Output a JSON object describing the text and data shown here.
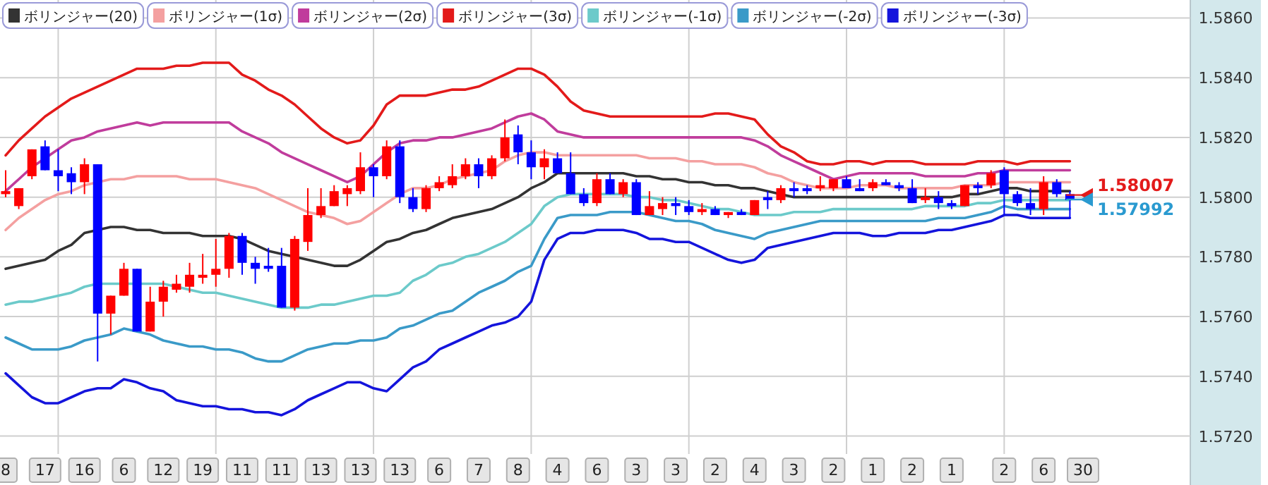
{
  "chart_data": {
    "type": "candlestick",
    "categories": [
      "8",
      null,
      null,
      "17",
      null,
      null,
      "16",
      null,
      null,
      "6",
      null,
      null,
      "12",
      null,
      null,
      "19",
      null,
      null,
      "11",
      null,
      null,
      "11",
      null,
      null,
      "13",
      null,
      null,
      "13",
      null,
      null,
      "13",
      null,
      null,
      "6",
      null,
      null,
      "7",
      null,
      null,
      "8",
      null,
      null,
      "4",
      null,
      null,
      "6",
      null,
      null,
      "3",
      null,
      null,
      "3",
      null,
      null,
      "2",
      null,
      null,
      "4",
      null,
      null,
      "3",
      null,
      null,
      "2",
      null,
      null,
      "1",
      null,
      null,
      "2",
      null,
      null,
      "1",
      null,
      null,
      null,
      "2",
      null,
      null,
      "6",
      null,
      null,
      "30"
    ],
    "ohlc": [
      [
        1.5801,
        1.5809,
        1.58,
        1.5802
      ],
      [
        1.5797,
        1.5803,
        1.5796,
        1.5803
      ],
      [
        1.5807,
        1.5816,
        1.5806,
        1.5816
      ],
      [
        1.5817,
        1.5819,
        1.5809,
        1.5809
      ],
      [
        1.5809,
        1.5816,
        1.5802,
        1.5807
      ],
      [
        1.5808,
        1.581,
        1.5801,
        1.5805
      ],
      [
        1.5805,
        1.5813,
        1.5801,
        1.5811
      ],
      [
        1.5811,
        1.5811,
        1.5745,
        1.5761
      ],
      [
        1.5761,
        1.5767,
        1.5754,
        1.5767
      ],
      [
        1.5767,
        1.5778,
        1.5767,
        1.5776
      ],
      [
        1.5776,
        1.5776,
        1.5755,
        1.5755
      ],
      [
        1.5755,
        1.577,
        1.5755,
        1.5765
      ],
      [
        1.5765,
        1.5772,
        1.576,
        1.577
      ],
      [
        1.5769,
        1.5774,
        1.5768,
        1.5771
      ],
      [
        1.577,
        1.5778,
        1.5768,
        1.5774
      ],
      [
        1.5773,
        1.5781,
        1.5771,
        1.5774
      ],
      [
        1.5774,
        1.5786,
        1.577,
        1.5776
      ],
      [
        1.5776,
        1.5788,
        1.5773,
        1.5787
      ],
      [
        1.5787,
        1.5788,
        1.5774,
        1.5778
      ],
      [
        1.5778,
        1.578,
        1.5771,
        1.5776
      ],
      [
        1.5777,
        1.5783,
        1.5775,
        1.5776
      ],
      [
        1.5777,
        1.5783,
        1.5763,
        1.5763
      ],
      [
        1.5763,
        1.5787,
        1.5762,
        1.5786
      ],
      [
        1.5785,
        1.5803,
        1.5782,
        1.5794
      ],
      [
        1.5794,
        1.5803,
        1.5793,
        1.5797
      ],
      [
        1.5797,
        1.5804,
        1.5797,
        1.5802
      ],
      [
        1.5801,
        1.5804,
        1.5797,
        1.5803
      ],
      [
        1.5802,
        1.5815,
        1.5801,
        1.581
      ],
      [
        1.581,
        1.5811,
        1.58,
        1.5807
      ],
      [
        1.5807,
        1.5819,
        1.5806,
        1.5817
      ],
      [
        1.5817,
        1.5819,
        1.5798,
        1.58
      ],
      [
        1.58,
        1.5803,
        1.5795,
        1.5796
      ],
      [
        1.5796,
        1.5804,
        1.5795,
        1.5803
      ],
      [
        1.5803,
        1.5807,
        1.5802,
        1.5805
      ],
      [
        1.5804,
        1.5811,
        1.5803,
        1.5807
      ],
      [
        1.5807,
        1.5813,
        1.5806,
        1.5811
      ],
      [
        1.5811,
        1.5813,
        1.5803,
        1.5807
      ],
      [
        1.5807,
        1.5814,
        1.5806,
        1.5813
      ],
      [
        1.5813,
        1.5826,
        1.5812,
        1.582
      ],
      [
        1.5821,
        1.5824,
        1.5811,
        1.5815
      ],
      [
        1.5815,
        1.5819,
        1.5806,
        1.581
      ],
      [
        1.581,
        1.5816,
        1.5806,
        1.5813
      ],
      [
        1.5813,
        1.5815,
        1.5808,
        1.5808
      ],
      [
        1.5808,
        1.5815,
        1.5801,
        1.5801
      ],
      [
        1.5801,
        1.5803,
        1.5797,
        1.5798
      ],
      [
        1.5798,
        1.5808,
        1.5797,
        1.5806
      ],
      [
        1.5806,
        1.5808,
        1.5801,
        1.5801
      ],
      [
        1.5801,
        1.5806,
        1.58,
        1.5805
      ],
      [
        1.5805,
        1.5806,
        1.5794,
        1.5794
      ],
      [
        1.5794,
        1.5802,
        1.5794,
        1.5797
      ],
      [
        1.5796,
        1.58,
        1.5794,
        1.5798
      ],
      [
        1.5798,
        1.58,
        1.5794,
        1.5797
      ],
      [
        1.5797,
        1.5799,
        1.5794,
        1.5795
      ],
      [
        1.5795,
        1.5798,
        1.5794,
        1.5796
      ],
      [
        1.5796,
        1.5797,
        1.5794,
        1.5794
      ],
      [
        1.5794,
        1.5795,
        1.5793,
        1.5795
      ],
      [
        1.5795,
        1.5796,
        1.5794,
        1.5794
      ],
      [
        1.5794,
        1.5799,
        1.5794,
        1.5799
      ],
      [
        1.58,
        1.5802,
        1.5796,
        1.5799
      ],
      [
        1.5799,
        1.5804,
        1.5798,
        1.5803
      ],
      [
        1.5803,
        1.5805,
        1.58,
        1.5802
      ],
      [
        1.5803,
        1.5804,
        1.5801,
        1.5802
      ],
      [
        1.5803,
        1.5807,
        1.5802,
        1.5804
      ],
      [
        1.5803,
        1.5806,
        1.5802,
        1.5806
      ],
      [
        1.5806,
        1.5807,
        1.5803,
        1.5803
      ],
      [
        1.5803,
        1.5806,
        1.5802,
        1.5802
      ],
      [
        1.5803,
        1.5806,
        1.5802,
        1.5805
      ],
      [
        1.5805,
        1.5806,
        1.5804,
        1.5804
      ],
      [
        1.5804,
        1.5805,
        1.5802,
        1.5803
      ],
      [
        1.5803,
        1.5806,
        1.5798,
        1.5798
      ],
      [
        1.5799,
        1.5803,
        1.5798,
        1.58
      ],
      [
        1.58,
        1.5802,
        1.5796,
        1.5798
      ],
      [
        1.5798,
        1.5799,
        1.5796,
        1.5797
      ],
      [
        1.5797,
        1.5804,
        1.5797,
        1.5804
      ],
      [
        1.5804,
        1.5805,
        1.5801,
        1.5803
      ],
      [
        1.5804,
        1.5809,
        1.5803,
        1.5808
      ],
      [
        1.5809,
        1.581,
        1.5794,
        1.5801
      ],
      [
        1.5801,
        1.5802,
        1.5797,
        1.5798
      ],
      [
        1.5798,
        1.5803,
        1.5794,
        1.5796
      ],
      [
        1.5796,
        1.5807,
        1.5794,
        1.5805
      ],
      [
        1.5805,
        1.5806,
        1.58,
        1.5801
      ],
      [
        1.5801,
        1.5802,
        1.5793,
        1.5799
      ],
      null
    ],
    "colors": [
      "#ff0000",
      "#ff0000",
      "#ff0000",
      "#0000ff",
      "#0000ff",
      "#0000ff",
      "#ff0000",
      "#0000ff",
      "#ff0000",
      "#ff0000",
      "#0000ff",
      "#ff0000",
      "#ff0000",
      "#ff0000",
      "#ff0000",
      "#ff0000",
      "#ff0000",
      "#ff0000",
      "#0000ff",
      "#0000ff",
      "#0000ff",
      "#0000ff",
      "#ff0000",
      "#ff0000",
      "#ff0000",
      "#ff0000",
      "#ff0000",
      "#ff0000",
      "#0000ff",
      "#ff0000",
      "#0000ff",
      "#0000ff",
      "#ff0000",
      "#ff0000",
      "#ff0000",
      "#ff0000",
      "#0000ff",
      "#ff0000",
      "#ff0000",
      "#0000ff",
      "#0000ff",
      "#ff0000",
      "#0000ff",
      "#0000ff",
      "#0000ff",
      "#ff0000",
      "#0000ff",
      "#ff0000",
      "#0000ff",
      "#ff0000",
      "#ff0000",
      "#0000ff",
      "#0000ff",
      "#ff0000",
      "#0000ff",
      "#ff0000",
      "#0000ff",
      "#ff0000",
      "#0000ff",
      "#ff0000",
      "#0000ff",
      "#0000ff",
      "#ff0000",
      "#ff0000",
      "#0000ff",
      "#0000ff",
      "#ff0000",
      "#0000ff",
      "#0000ff",
      "#0000ff",
      "#ff0000",
      "#0000ff",
      "#0000ff",
      "#ff0000",
      "#0000ff",
      "#ff0000",
      "#0000ff",
      "#0000ff",
      "#0000ff",
      "#ff0000",
      "#0000ff",
      "#0000ff",
      null
    ],
    "series": [
      {
        "name": "ボリンジャー(20)",
        "type": "line",
        "color": "#333333",
        "values": [
          1.5776,
          1.5777,
          1.5778,
          1.5779,
          1.5782,
          1.5784,
          1.5788,
          1.5789,
          1.579,
          1.579,
          1.5789,
          1.5789,
          1.5788,
          1.5788,
          1.5788,
          1.5787,
          1.5787,
          1.5787,
          1.5786,
          1.5784,
          1.5782,
          1.5781,
          1.578,
          1.5779,
          1.5778,
          1.5777,
          1.5777,
          1.5779,
          1.5782,
          1.5785,
          1.5786,
          1.5788,
          1.5789,
          1.5791,
          1.5793,
          1.5794,
          1.5795,
          1.5796,
          1.5798,
          1.58,
          1.5803,
          1.5805,
          1.5808,
          1.5808,
          1.5808,
          1.5808,
          1.5808,
          1.5808,
          1.5807,
          1.5807,
          1.5806,
          1.5806,
          1.5805,
          1.5805,
          1.5804,
          1.5804,
          1.5803,
          1.5803,
          1.5802,
          1.5801,
          1.58,
          1.58,
          1.58,
          1.58,
          1.58,
          1.58,
          1.58,
          1.58,
          1.58,
          1.58,
          1.58,
          1.58,
          1.58,
          1.5801,
          1.5801,
          1.5802,
          1.5803,
          1.5803,
          1.5802,
          1.5802,
          1.5802,
          1.5802,
          null
        ]
      },
      {
        "name": "ボリンジャー(1σ)",
        "type": "line",
        "color": "#f4a0a0",
        "values": [
          1.5789,
          1.5793,
          1.5796,
          1.5799,
          1.5801,
          1.5802,
          1.5804,
          1.5805,
          1.5806,
          1.5806,
          1.5807,
          1.5807,
          1.5807,
          1.5807,
          1.5806,
          1.5806,
          1.5806,
          1.5805,
          1.5804,
          1.5803,
          1.5801,
          1.5799,
          1.5797,
          1.5795,
          1.5794,
          1.5793,
          1.5791,
          1.5792,
          1.5795,
          1.5798,
          1.5801,
          1.5803,
          1.5803,
          1.5804,
          1.5806,
          1.5807,
          1.5808,
          1.5809,
          1.5812,
          1.5814,
          1.5815,
          1.5815,
          1.5814,
          1.5814,
          1.5814,
          1.5814,
          1.5814,
          1.5814,
          1.5814,
          1.5813,
          1.5813,
          1.5813,
          1.5812,
          1.5812,
          1.5811,
          1.5811,
          1.5811,
          1.581,
          1.5808,
          1.5807,
          1.5805,
          1.5804,
          1.5803,
          1.5803,
          1.5803,
          1.5804,
          1.5804,
          1.5804,
          1.5803,
          1.5803,
          1.5803,
          1.5803,
          1.5803,
          1.5804,
          1.5804,
          1.5804,
          1.5805,
          1.5805,
          1.5805,
          1.5805,
          1.5805,
          1.5805,
          null
        ]
      },
      {
        "name": "ボリンジャー(2σ)",
        "type": "line",
        "color": "#c03c9c",
        "values": [
          1.5802,
          1.5806,
          1.581,
          1.5813,
          1.5816,
          1.5819,
          1.582,
          1.5822,
          1.5823,
          1.5824,
          1.5825,
          1.5824,
          1.5825,
          1.5825,
          1.5825,
          1.5825,
          1.5825,
          1.5825,
          1.5822,
          1.582,
          1.5818,
          1.5815,
          1.5813,
          1.5811,
          1.5809,
          1.5807,
          1.5805,
          1.5807,
          1.5811,
          1.5815,
          1.5818,
          1.5819,
          1.5819,
          1.582,
          1.582,
          1.5821,
          1.5822,
          1.5823,
          1.5825,
          1.5827,
          1.5828,
          1.5826,
          1.5822,
          1.5821,
          1.582,
          1.582,
          1.582,
          1.582,
          1.582,
          1.582,
          1.582,
          1.582,
          1.582,
          1.582,
          1.582,
          1.582,
          1.582,
          1.5819,
          1.5817,
          1.5814,
          1.5812,
          1.581,
          1.5808,
          1.5806,
          1.5807,
          1.5808,
          1.5808,
          1.5808,
          1.5808,
          1.5808,
          1.5807,
          1.5807,
          1.5807,
          1.5807,
          1.5808,
          1.5808,
          1.5809,
          1.5809,
          1.5809,
          1.5809,
          1.5809,
          1.5809,
          null
        ]
      },
      {
        "name": "ボリンジャー(3σ)",
        "type": "line",
        "color": "#e31a1a",
        "values": [
          1.5814,
          1.5819,
          1.5823,
          1.5827,
          1.583,
          1.5833,
          1.5835,
          1.5837,
          1.5839,
          1.5841,
          1.5843,
          1.5843,
          1.5843,
          1.5844,
          1.5844,
          1.5845,
          1.5845,
          1.5845,
          1.5841,
          1.5839,
          1.5836,
          1.5834,
          1.5831,
          1.5827,
          1.5823,
          1.582,
          1.5818,
          1.5819,
          1.5824,
          1.5831,
          1.5834,
          1.5834,
          1.5834,
          1.5835,
          1.5836,
          1.5836,
          1.5837,
          1.5839,
          1.5841,
          1.5843,
          1.5843,
          1.5841,
          1.5837,
          1.5832,
          1.5829,
          1.5828,
          1.5827,
          1.5827,
          1.5827,
          1.5827,
          1.5827,
          1.5827,
          1.5827,
          1.5827,
          1.5828,
          1.5828,
          1.5827,
          1.5826,
          1.5821,
          1.5817,
          1.5815,
          1.5812,
          1.5811,
          1.5811,
          1.5812,
          1.5812,
          1.5811,
          1.5812,
          1.5812,
          1.5812,
          1.5811,
          1.5811,
          1.5811,
          1.5811,
          1.5812,
          1.5812,
          1.5812,
          1.5811,
          1.5812,
          1.5812,
          1.5812,
          1.5812,
          null
        ]
      },
      {
        "name": "ボリンジャー(-1σ)",
        "type": "line",
        "color": "#6ccaca",
        "values": [
          1.5764,
          1.5765,
          1.5765,
          1.5766,
          1.5767,
          1.5768,
          1.577,
          1.5771,
          1.5771,
          1.5771,
          1.5771,
          1.5771,
          1.5771,
          1.577,
          1.5769,
          1.5768,
          1.5768,
          1.5767,
          1.5766,
          1.5765,
          1.5764,
          1.5763,
          1.5763,
          1.5763,
          1.5764,
          1.5764,
          1.5765,
          1.5766,
          1.5767,
          1.5767,
          1.5768,
          1.5772,
          1.5774,
          1.5777,
          1.5778,
          1.578,
          1.5781,
          1.5783,
          1.5785,
          1.5788,
          1.5791,
          1.5797,
          1.58,
          1.5801,
          1.5801,
          1.5801,
          1.5801,
          1.5801,
          1.58,
          1.58,
          1.5799,
          1.5799,
          1.5798,
          1.5797,
          1.5796,
          1.5796,
          1.5795,
          1.5794,
          1.5794,
          1.5794,
          1.5795,
          1.5795,
          1.5795,
          1.5796,
          1.5796,
          1.5796,
          1.5796,
          1.5796,
          1.5796,
          1.5796,
          1.5797,
          1.5797,
          1.5797,
          1.5797,
          1.5798,
          1.5798,
          1.5799,
          1.5799,
          1.5799,
          1.5799,
          1.5799,
          1.5799,
          null
        ]
      },
      {
        "name": "ボリンジャー(-2σ)",
        "type": "line",
        "color": "#3a9ac8",
        "values": [
          1.5753,
          1.5751,
          1.5749,
          1.5749,
          1.5749,
          1.575,
          1.5752,
          1.5753,
          1.5754,
          1.5756,
          1.5755,
          1.5754,
          1.5752,
          1.5751,
          1.575,
          1.575,
          1.5749,
          1.5749,
          1.5748,
          1.5746,
          1.5745,
          1.5745,
          1.5747,
          1.5749,
          1.575,
          1.5751,
          1.5751,
          1.5752,
          1.5752,
          1.5753,
          1.5756,
          1.5757,
          1.5759,
          1.5761,
          1.5762,
          1.5765,
          1.5768,
          1.577,
          1.5772,
          1.5775,
          1.5777,
          1.5786,
          1.5793,
          1.5794,
          1.5794,
          1.5794,
          1.5795,
          1.5795,
          1.5795,
          1.5794,
          1.5793,
          1.5792,
          1.5792,
          1.5791,
          1.5789,
          1.5788,
          1.5787,
          1.5786,
          1.5788,
          1.5789,
          1.579,
          1.5791,
          1.5792,
          1.5792,
          1.5792,
          1.5792,
          1.5792,
          1.5792,
          1.5792,
          1.5792,
          1.5792,
          1.5793,
          1.5793,
          1.5793,
          1.5794,
          1.5795,
          1.5797,
          1.5796,
          1.5796,
          1.5796,
          1.5796,
          1.5796,
          null
        ]
      },
      {
        "name": "ボリンジャー(-3σ)",
        "type": "line",
        "color": "#1414dc",
        "values": [
          1.5741,
          1.5737,
          1.5733,
          1.5731,
          1.5731,
          1.5733,
          1.5735,
          1.5736,
          1.5736,
          1.5739,
          1.5738,
          1.5736,
          1.5735,
          1.5732,
          1.5731,
          1.573,
          1.573,
          1.5729,
          1.5729,
          1.5728,
          1.5728,
          1.5727,
          1.5729,
          1.5732,
          1.5734,
          1.5736,
          1.5738,
          1.5738,
          1.5736,
          1.5735,
          1.5739,
          1.5743,
          1.5745,
          1.5749,
          1.5751,
          1.5753,
          1.5755,
          1.5757,
          1.5758,
          1.576,
          1.5765,
          1.5779,
          1.5786,
          1.5788,
          1.5788,
          1.5789,
          1.5789,
          1.5789,
          1.5788,
          1.5786,
          1.5786,
          1.5785,
          1.5785,
          1.5783,
          1.5781,
          1.5779,
          1.5778,
          1.5779,
          1.5783,
          1.5784,
          1.5785,
          1.5786,
          1.5787,
          1.5788,
          1.5788,
          1.5788,
          1.5787,
          1.5787,
          1.5788,
          1.5788,
          1.5788,
          1.5789,
          1.5789,
          1.579,
          1.5791,
          1.5792,
          1.5794,
          1.5794,
          1.5793,
          1.5793,
          1.5793,
          1.5793,
          null
        ]
      }
    ],
    "ref_lines": [
      {
        "axis": "y",
        "value": 1.58007,
        "label": "1.58007",
        "color": "#e31a1a"
      },
      {
        "axis": "y",
        "value": 1.57992,
        "label": "1.57992",
        "color": "#2a9ad0"
      }
    ],
    "ylim": [
      1.5714,
      1.5866
    ],
    "yticks": [
      {
        "value": 1.572,
        "label": "1.5720"
      },
      {
        "value": 1.574,
        "label": "1.5740"
      },
      {
        "value": 1.576,
        "label": "1.5760"
      },
      {
        "value": 1.578,
        "label": "1.5780"
      },
      {
        "value": 1.58,
        "label": "1.5800"
      },
      {
        "value": 1.582,
        "label": "1.5820"
      },
      {
        "value": 1.584,
        "label": "1.5840"
      },
      {
        "value": 1.586,
        "label": "1.5860"
      }
    ],
    "grid": true,
    "legend": "top left"
  }
}
